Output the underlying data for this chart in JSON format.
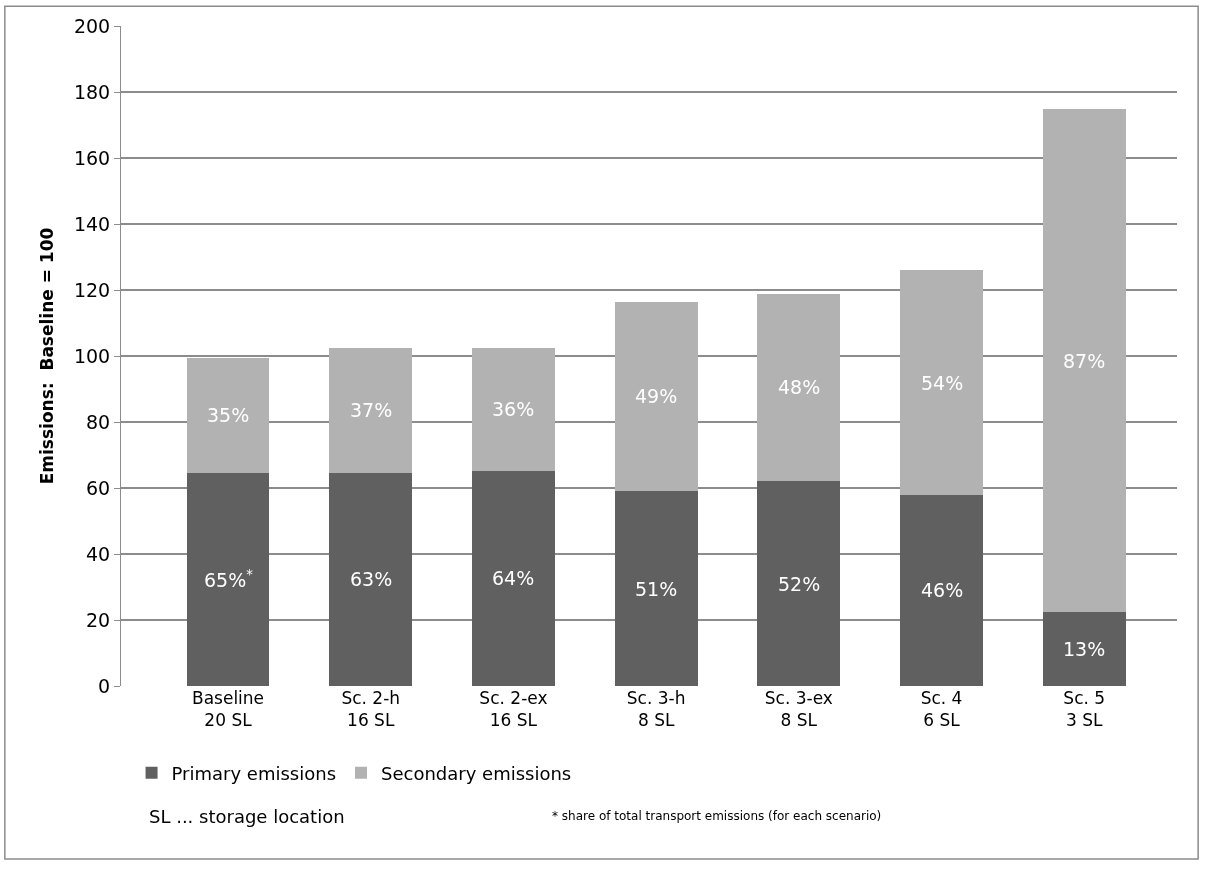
{
  "chart_data": {
    "type": "bar",
    "stacked": true,
    "ylabel": "Emissions:  Baseline = 100",
    "categories": [
      "Baseline\n20 SL",
      "Sc. 2-h\n16 SL",
      "Sc. 2-ex\n16 SL",
      "Sc. 3-h\n8 SL",
      "Sc. 3-ex\n8 SL",
      "Sc. 4\n6 SL",
      "Sc. 5\n3 SL"
    ],
    "series": [
      {
        "name": "Primary emissions",
        "color": "#606060",
        "values": [
          64.6,
          64.6,
          65.3,
          59.0,
          62.1,
          57.9,
          22.4
        ]
      },
      {
        "name": "Secondary emissions",
        "color": "#b2b2b2",
        "values": [
          34.8,
          37.9,
          37.2,
          57.5,
          56.8,
          68.1,
          152.3
        ]
      }
    ],
    "ylim": [
      0,
      200
    ],
    "yticks": [
      0,
      20,
      40,
      60,
      80,
      100,
      120,
      140,
      160,
      180,
      200
    ],
    "grid": "y",
    "legend": "bottom left",
    "annotations": [
      "65%$^{*}$",
      "63%",
      "64%",
      "51%",
      "52%",
      "46%",
      "13%",
      "35%",
      "37%",
      "36%",
      "49%",
      "48%",
      "54%",
      "87%",
      "SL ... storage location",
      "* share of total transport emissions (for each scenario)"
    ]
  }
}
